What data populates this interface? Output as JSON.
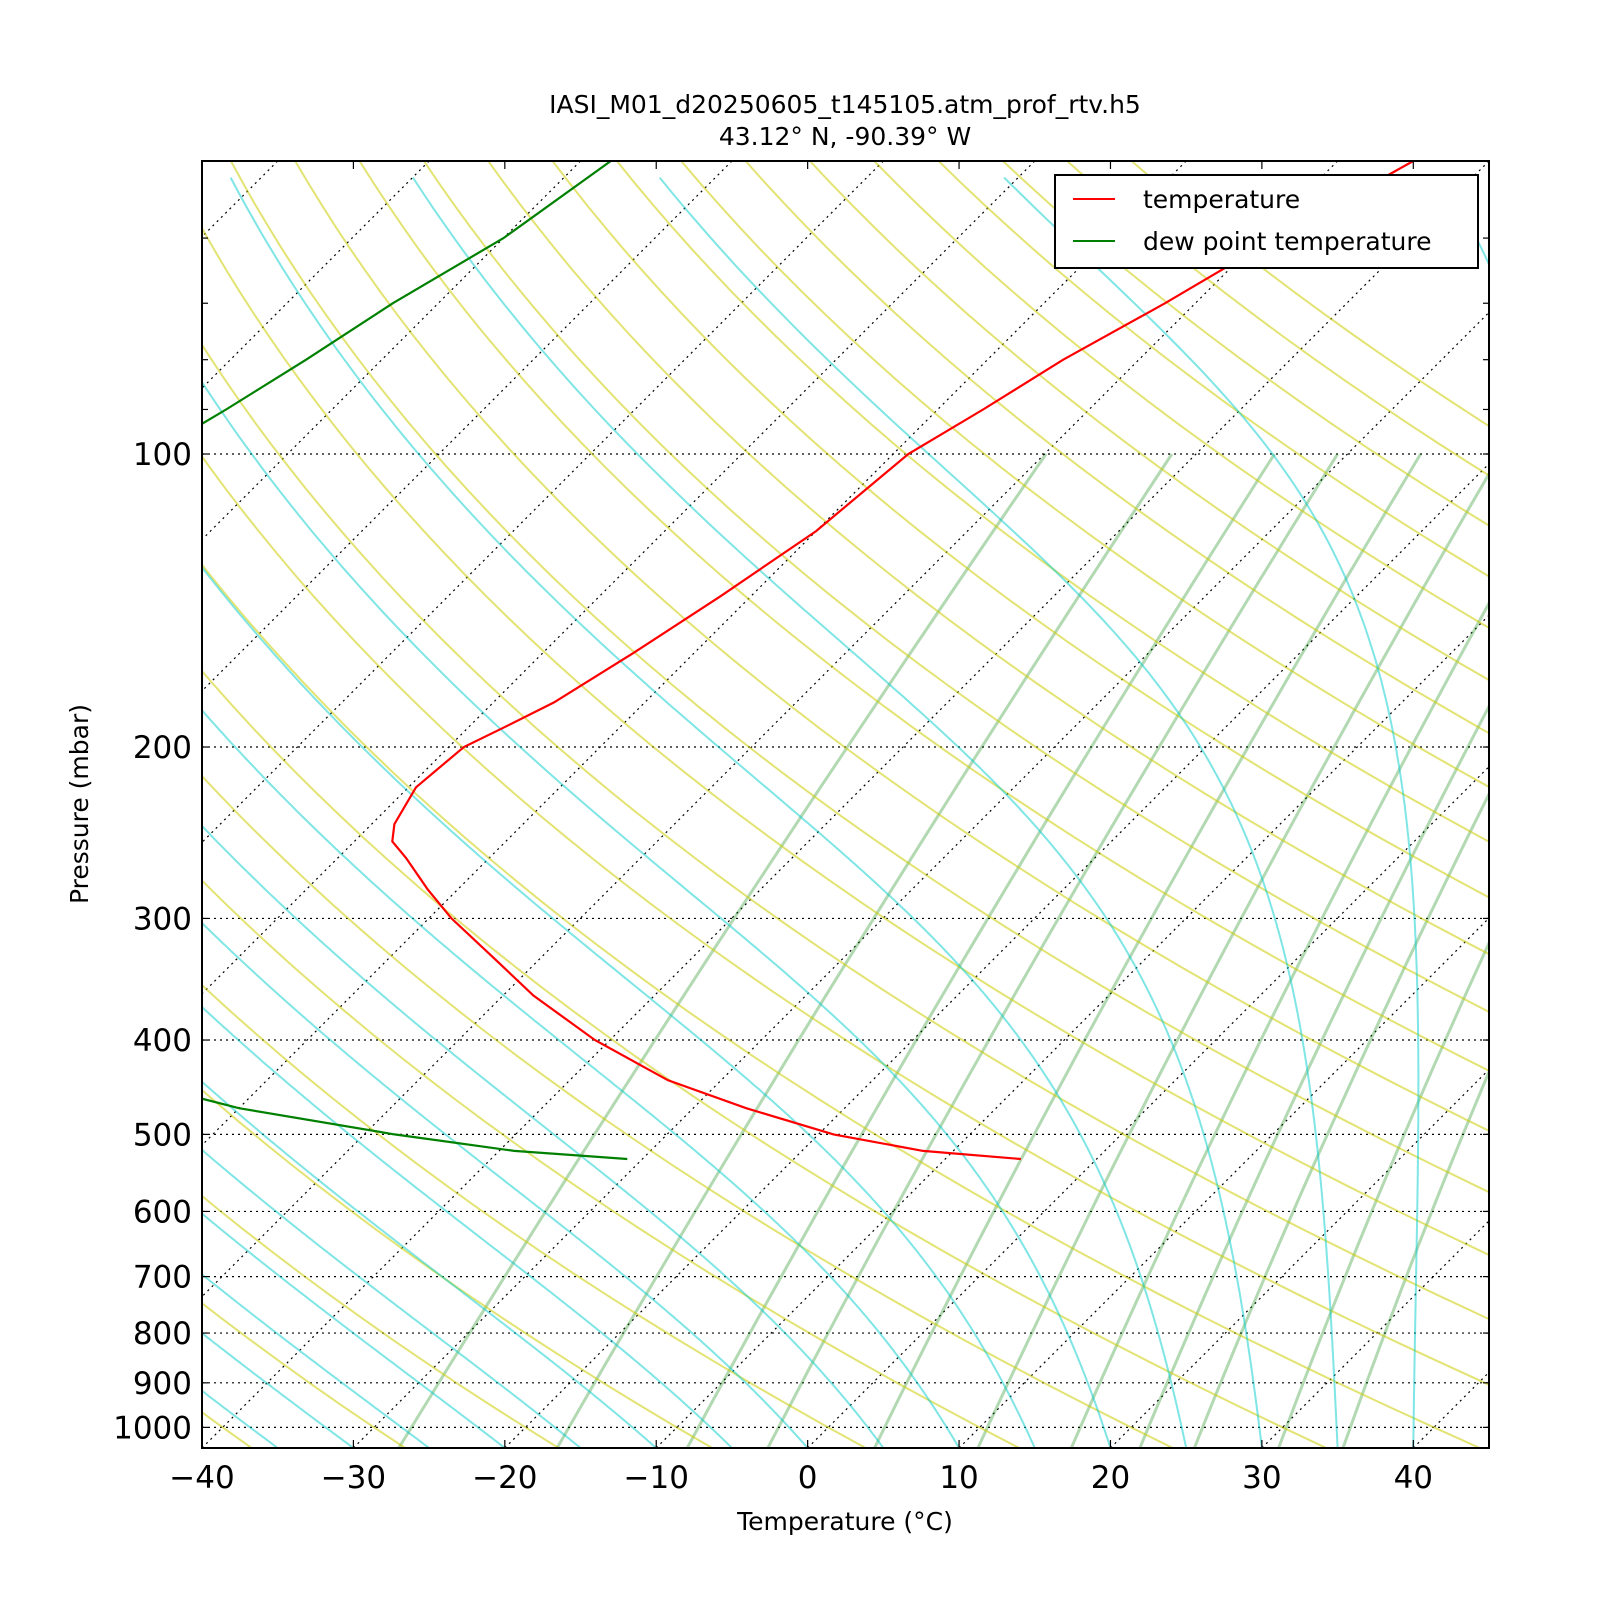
{
  "chart_data": {
    "type": "line",
    "title": "IASI_M01_d20250605_t145105.atm_prof_rtv.h5",
    "subtitle": "43.12° N, -90.39° W",
    "xlabel": "Temperature (°C)",
    "ylabel": "Pressure (mbar)",
    "x_ticks": [
      -40,
      -30,
      -20,
      -10,
      0,
      10,
      20,
      30,
      40
    ],
    "x_tick_labels": [
      "−40",
      "−30",
      "−20",
      "−10",
      "0",
      "10",
      "20",
      "30",
      "40"
    ],
    "y_ticks": [
      100,
      200,
      300,
      400,
      500,
      600,
      700,
      800,
      900,
      1000
    ],
    "y_tick_labels": [
      "100",
      "200",
      "300",
      "400",
      "500",
      "600",
      "700",
      "800",
      "900",
      "1000"
    ],
    "xlim": [
      -40,
      45
    ],
    "ylim": [
      1050,
      50
    ],
    "y_scale": "log",
    "skew": true,
    "grid": true,
    "legend_position": "top-right",
    "series": [
      {
        "name": "temperature",
        "color": "#ff0000",
        "pressure": [
          50,
          60,
          70,
          80,
          90,
          100,
          120,
          140,
          160,
          180,
          190,
          200,
          220,
          240,
          250,
          260,
          280,
          300,
          330,
          360,
          400,
          440,
          470,
          500,
          520,
          530
        ],
        "values": [
          -45,
          -49,
          -52,
          -55,
          -57,
          -59,
          -60,
          -62,
          -64,
          -66,
          -67.5,
          -69,
          -69.5,
          -68.5,
          -67.5,
          -65.5,
          -62,
          -58.5,
          -53,
          -48,
          -41,
          -33.5,
          -26.5,
          -19,
          -12,
          -5
        ]
      },
      {
        "name": "dew point temperature",
        "color": "#008000",
        "pressure": [
          50,
          60,
          70,
          80,
          90,
          100,
          120,
          140,
          160,
          180,
          190,
          200,
          220,
          240,
          250,
          260,
          280,
          300,
          330,
          360,
          400,
          440,
          470,
          500,
          520,
          530
        ],
        "values": [
          -98,
          -100,
          -103,
          -105,
          -107,
          -109,
          -111.5,
          -114,
          -116,
          -118,
          -118.5,
          -119,
          -119,
          -118.5,
          -117.5,
          -116,
          -112.5,
          -109,
          -101,
          -90,
          -77,
          -69,
          -60,
          -48,
          -39,
          -31
        ]
      }
    ]
  }
}
